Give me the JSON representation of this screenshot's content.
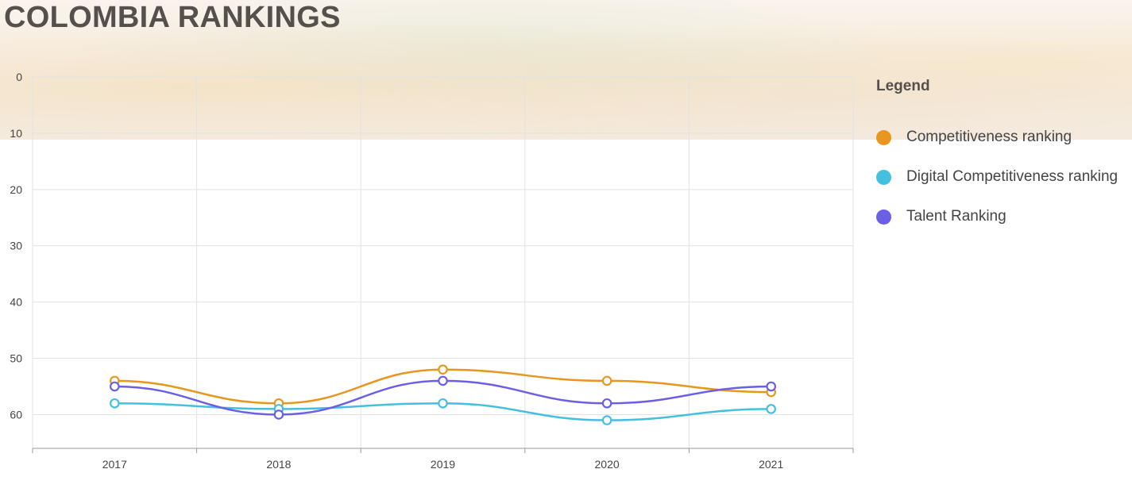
{
  "page": {
    "title": "COLOMBIA RANKINGS"
  },
  "legend": {
    "title": "Legend",
    "items": [
      {
        "label": "Competitiveness ranking",
        "color": "#E8961E"
      },
      {
        "label": "Digital Competitiveness ranking",
        "color": "#45BFE0"
      },
      {
        "label": "Talent Ranking",
        "color": "#6B5FE6"
      }
    ]
  },
  "chart_data": {
    "type": "line",
    "smooth": true,
    "x": [
      "2017",
      "2018",
      "2019",
      "2020",
      "2021"
    ],
    "y_ticks": [
      "0",
      "10",
      "20",
      "30",
      "40",
      "50",
      "60"
    ],
    "ylim": [
      0,
      66
    ],
    "y_reversed": false,
    "grid": true,
    "legend_position": "right",
    "series": [
      {
        "name": "Competitiveness ranking",
        "color": "#E8961E",
        "values": [
          54,
          58,
          52,
          54,
          56
        ]
      },
      {
        "name": "Digital Competitiveness ranking",
        "color": "#45BFE0",
        "values": [
          58,
          59,
          58,
          61,
          59
        ]
      },
      {
        "name": "Talent Ranking",
        "color": "#6B5FE6",
        "values": [
          55,
          60,
          54,
          58,
          55
        ]
      }
    ]
  }
}
